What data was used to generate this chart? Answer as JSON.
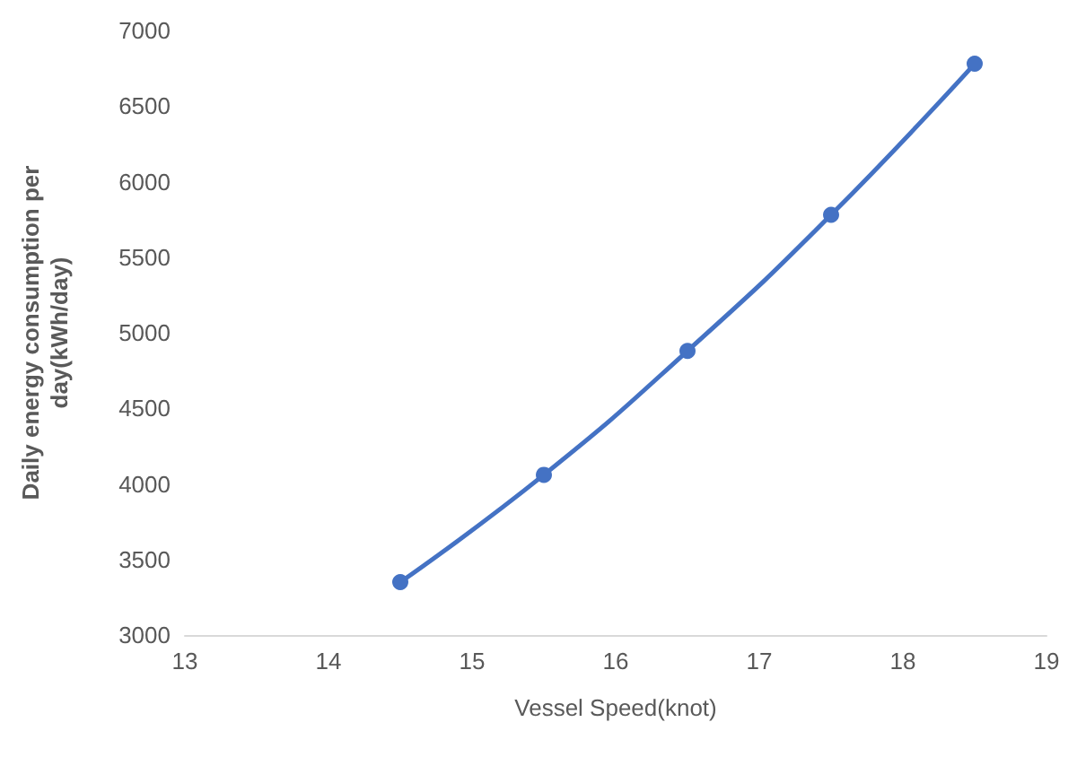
{
  "chart_data": {
    "type": "line",
    "xlabel": "Vessel Speed(knot)",
    "ylabel": "Daily energy consumption per day(kWh/day)",
    "x": [
      14.5,
      15.5,
      16.5,
      17.5,
      18.5
    ],
    "series": [
      {
        "color": "#4472c4",
        "values": [
          3350,
          4060,
          4880,
          5780,
          6780
        ]
      }
    ],
    "xlim": [
      13,
      19
    ],
    "xticks": [
      13,
      14,
      15,
      16,
      17,
      18,
      19
    ],
    "ylim": [
      3000,
      7000
    ],
    "yticks": [
      3000,
      3500,
      4000,
      4500,
      5000,
      5500,
      6000,
      6500,
      7000
    ],
    "grid": false,
    "marker": "circle",
    "line_style": "solid"
  }
}
